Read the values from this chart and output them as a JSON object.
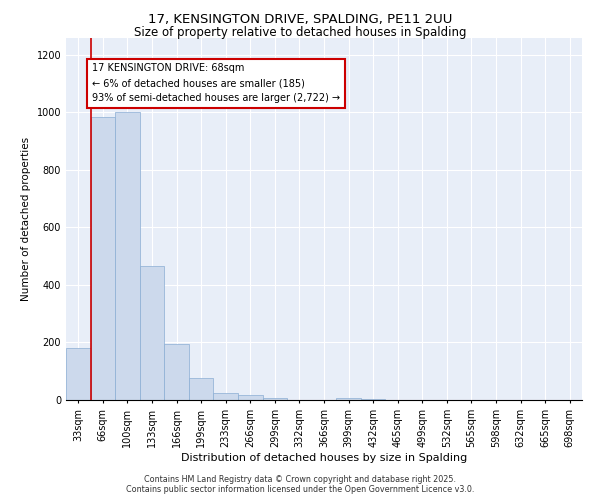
{
  "title": "17, KENSINGTON DRIVE, SPALDING, PE11 2UU",
  "subtitle": "Size of property relative to detached houses in Spalding",
  "xlabel": "Distribution of detached houses by size in Spalding",
  "ylabel": "Number of detached properties",
  "categories": [
    "33sqm",
    "66sqm",
    "100sqm",
    "133sqm",
    "166sqm",
    "199sqm",
    "233sqm",
    "266sqm",
    "299sqm",
    "332sqm",
    "366sqm",
    "399sqm",
    "432sqm",
    "465sqm",
    "499sqm",
    "532sqm",
    "565sqm",
    "598sqm",
    "632sqm",
    "665sqm",
    "698sqm"
  ],
  "values": [
    180,
    985,
    1000,
    465,
    195,
    75,
    25,
    18,
    8,
    0,
    0,
    8,
    2,
    0,
    0,
    0,
    0,
    0,
    0,
    0,
    0
  ],
  "bar_color": "#ccd9ec",
  "bar_edge_color": "#8aadd4",
  "property_line_color": "#cc0000",
  "annotation_text": "17 KENSINGTON DRIVE: 68sqm\n← 6% of detached houses are smaller (185)\n93% of semi-detached houses are larger (2,722) →",
  "annotation_box_color": "#ffffff",
  "annotation_box_edge": "#cc0000",
  "ylim": [
    0,
    1260
  ],
  "yticks": [
    0,
    200,
    400,
    600,
    800,
    1000,
    1200
  ],
  "background_color": "#e8eef8",
  "footer_line1": "Contains HM Land Registry data © Crown copyright and database right 2025.",
  "footer_line2": "Contains public sector information licensed under the Open Government Licence v3.0.",
  "title_fontsize": 9.5,
  "subtitle_fontsize": 8.5,
  "tick_fontsize": 7,
  "ylabel_fontsize": 7.5,
  "xlabel_fontsize": 8
}
